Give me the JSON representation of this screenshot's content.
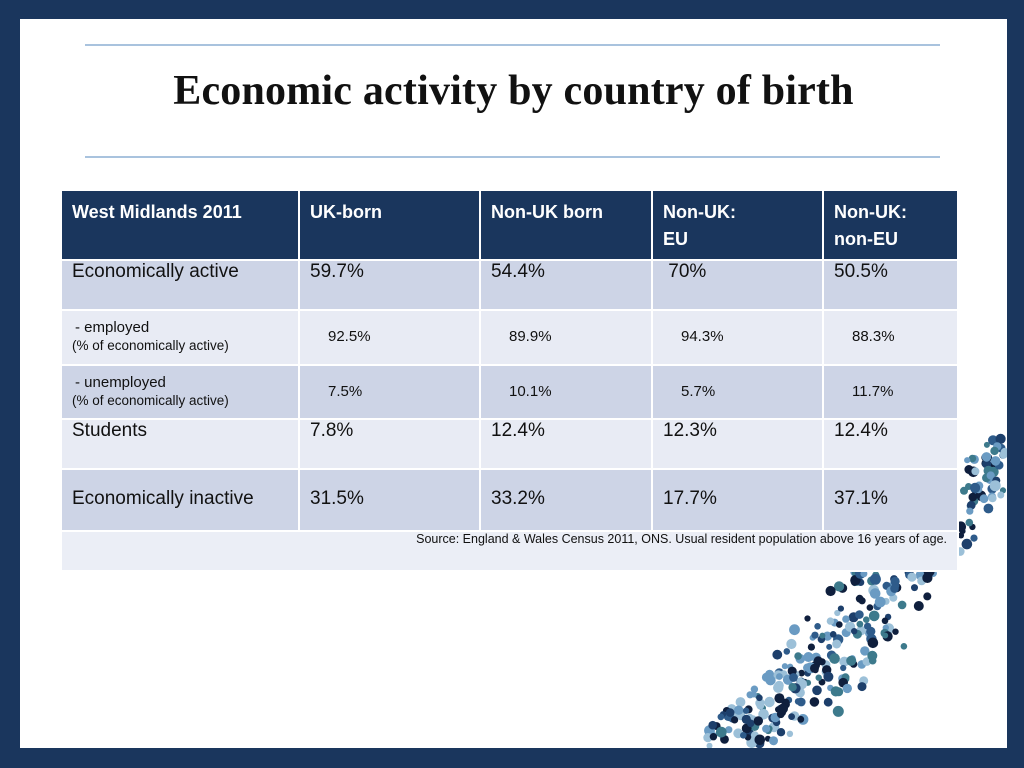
{
  "slide": {
    "title": "Economic activity by country of birth"
  },
  "table": {
    "headers": [
      "West Midlands 2011",
      "UK-born",
      "Non-UK  born",
      "Non-UK:\nEU",
      "Non-UK:\nnon-EU"
    ],
    "rows": [
      {
        "label": "Economically active",
        "sublabel": "",
        "values": [
          "59.7%",
          "54.4%",
          " 70%",
          "50.5%"
        ]
      },
      {
        "label": " - employed",
        "sublabel": "(% of economically active)",
        "values": [
          "92.5%",
          "89.9%",
          "94.3%",
          "88.3%"
        ]
      },
      {
        "label": " - unemployed",
        "sublabel": "(% of economically active)",
        "values": [
          "7.5%",
          "10.1%",
          "5.7%",
          "11.7%"
        ]
      },
      {
        "label": "Students",
        "sublabel": "",
        "values": [
          "7.8%",
          "12.4%",
          "12.3%",
          "12.4%"
        ]
      },
      {
        "label": "Economically inactive",
        "sublabel": "",
        "values": [
          "31.5%",
          "33.2%",
          "17.7%",
          "37.1%"
        ]
      }
    ],
    "source": "Source: England & Wales Census 2011, ONS. Usual resident population above 16 years of age."
  },
  "decoration": {
    "dot_colors": [
      "#0f1f3d",
      "#2e5b8a",
      "#6a9bc3",
      "#9cc0d8",
      "#3d7a8c",
      "#1d3f6b"
    ]
  }
}
